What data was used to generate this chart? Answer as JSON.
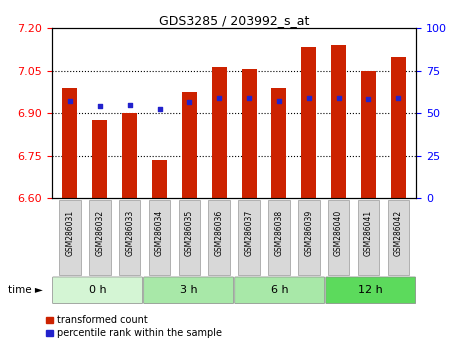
{
  "title": "GDS3285 / 203992_s_at",
  "samples": [
    "GSM286031",
    "GSM286032",
    "GSM286033",
    "GSM286034",
    "GSM286035",
    "GSM286036",
    "GSM286037",
    "GSM286038",
    "GSM286039",
    "GSM286040",
    "GSM286041",
    "GSM286042"
  ],
  "bar_values": [
    6.99,
    6.875,
    6.9,
    6.735,
    6.975,
    7.065,
    7.055,
    6.99,
    7.135,
    7.14,
    7.05,
    7.1
  ],
  "blue_values": [
    6.945,
    6.925,
    6.93,
    6.915,
    6.94,
    6.955,
    6.955,
    6.945,
    6.955,
    6.955,
    6.95,
    6.955
  ],
  "bar_color": "#cc2200",
  "blue_color": "#2222cc",
  "ylim_left": [
    6.6,
    7.2
  ],
  "yticks_left": [
    6.6,
    6.75,
    6.9,
    7.05,
    7.2
  ],
  "ylim_right": [
    0,
    100
  ],
  "yticks_right": [
    0,
    25,
    50,
    75,
    100
  ],
  "group_labels": [
    "0 h",
    "3 h",
    "6 h",
    "12 h"
  ],
  "group_counts": [
    3,
    3,
    3,
    3
  ],
  "group_colors": [
    "#d4f5d4",
    "#a8e8a8",
    "#a8e8a8",
    "#5cda5c"
  ],
  "legend_bar": "transformed count",
  "legend_blue": "percentile rank within the sample",
  "grid_color": "#000000",
  "bar_bottom": 6.6
}
